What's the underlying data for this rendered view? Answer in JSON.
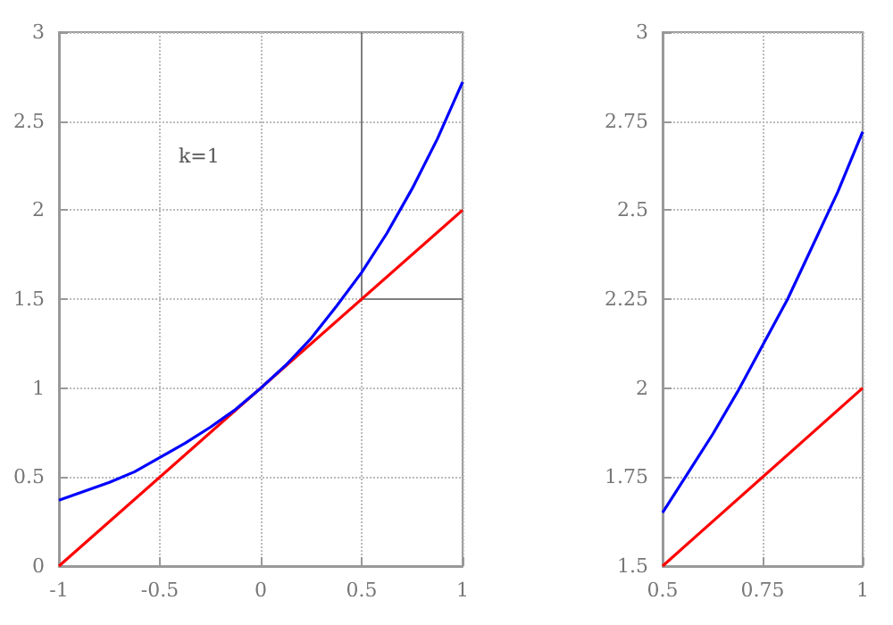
{
  "chart_data": [
    {
      "type": "line",
      "xlim": [
        -1,
        1
      ],
      "xticks": [
        -1,
        -0.5,
        0,
        0.5,
        1
      ],
      "ylim": [
        0,
        3
      ],
      "yticks": [
        0,
        0.5,
        1,
        1.5,
        2,
        2.5,
        3
      ],
      "grid": true,
      "marker": "none",
      "line_style": "solid",
      "annotations": [
        "k=1"
      ],
      "series": [
        {
          "color": "#0000ff",
          "x": [
            -1,
            -0.875,
            -0.75,
            -0.625,
            -0.5,
            -0.375,
            -0.25,
            -0.125,
            0,
            0.125,
            0.25,
            0.375,
            0.5,
            0.625,
            0.75,
            0.875,
            1
          ],
          "values": [
            0.37,
            0.42,
            0.47,
            0.53,
            0.61,
            0.69,
            0.78,
            0.88,
            1,
            1.13,
            1.28,
            1.46,
            1.65,
            1.87,
            2.12,
            2.4,
            2.72
          ]
        },
        {
          "color": "#ff0000",
          "x": [
            -1,
            1
          ],
          "values": [
            0,
            2
          ]
        },
        {
          "color": "#808080",
          "x": [
            0.5,
            0.5,
            1
          ],
          "values": [
            3,
            1.5,
            1.5
          ]
        }
      ]
    },
    {
      "type": "line",
      "xlim": [
        0.5,
        1
      ],
      "xticks": [
        0.5,
        0.75,
        1
      ],
      "ylim": [
        1.5,
        3
      ],
      "yticks": [
        1.5,
        1.75,
        2,
        2.25,
        2.5,
        2.75,
        3
      ],
      "grid": true,
      "marker": "none",
      "line_style": "solid",
      "series": [
        {
          "color": "#0000ff",
          "x": [
            0.5,
            0.5625,
            0.625,
            0.6875,
            0.75,
            0.8125,
            0.875,
            0.9375,
            1
          ],
          "values": [
            1.65,
            1.76,
            1.87,
            1.99,
            2.12,
            2.25,
            2.4,
            2.55,
            2.72
          ]
        },
        {
          "color": "#ff0000",
          "x": [
            0.5,
            1
          ],
          "values": [
            1.5,
            2
          ]
        }
      ]
    }
  ]
}
